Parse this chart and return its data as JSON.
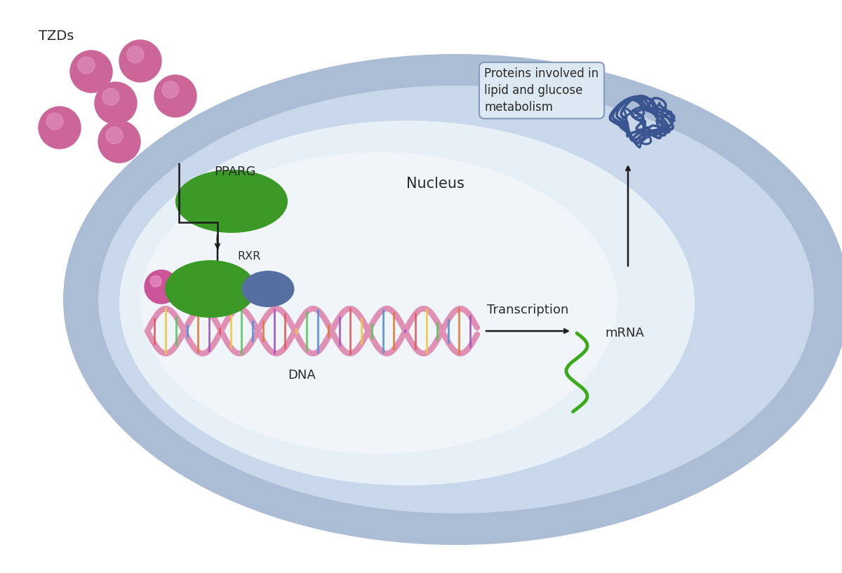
{
  "bg_color": "#ffffff",
  "cell_outer_color": "#abbdd4",
  "cell_middle_color": "#c8d8ea",
  "nucleus_inner_color": "#e8f0f7",
  "nucleus_white_color": "#f0f5fa",
  "tzd_color": "#cc6699",
  "tzd_highlight": "#e8a0c8",
  "pparg_color": "#3a9a25",
  "rxr_pink_color": "#cc5599",
  "rxr_blue_color": "#5570a0",
  "dna_backbone_color": "#e090b5",
  "mrna_color": "#3aaa18",
  "protein_color": "#3a5590",
  "arrow_color": "#1a1a1a",
  "text_color": "#2a2a2a",
  "box_bg_color": "#dce8f2",
  "box_border_color": "#8898b8",
  "label_tzds": "TZDs",
  "label_pparg": "PPARG",
  "label_nucleus": "Nucleus",
  "label_rxr": "RXR",
  "label_dna": "DNA",
  "label_transcription": "Transcription",
  "label_mrna": "mRNA",
  "label_proteins": "Proteins involved in\nlipid and glucose\nmetabolism",
  "font_size_small": 13,
  "font_size_main": 15
}
